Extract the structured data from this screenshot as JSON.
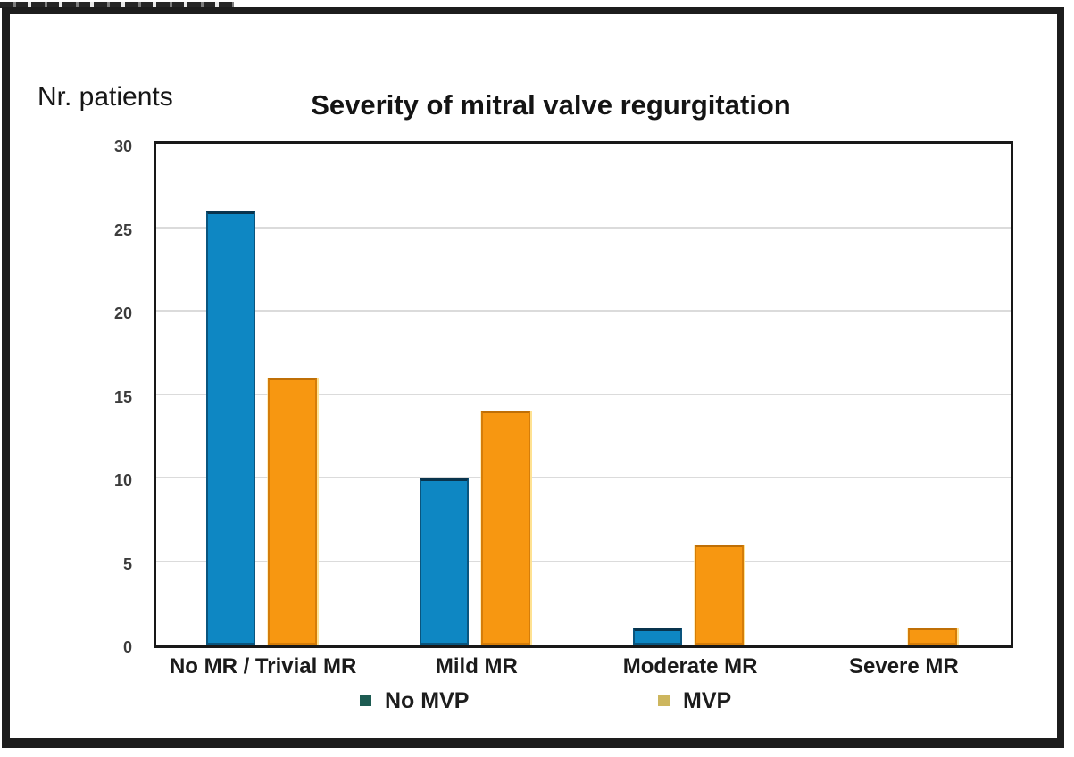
{
  "chart_data": {
    "type": "bar",
    "title": "Severity of mitral valve regurgitation",
    "ylabel": "Nr. patients",
    "xlabel": "",
    "categories": [
      "No MR / Trivial MR",
      "Mild MR",
      "Moderate MR",
      "Severe MR"
    ],
    "series": [
      {
        "name": "No MVP",
        "color": "#0e87c3",
        "marker_color": "#1d5b52",
        "values": [
          26,
          10,
          1,
          0
        ]
      },
      {
        "name": "MVP",
        "color": "#f79711",
        "marker_color": "#cdb65e",
        "values": [
          16,
          14,
          6,
          1
        ]
      }
    ],
    "ylim": [
      0,
      30
    ],
    "yticks": [
      0,
      5,
      10,
      15,
      20,
      25,
      30
    ],
    "grid": "horizontal-light",
    "legend_position": "bottom",
    "frame_color": "#1d1d1d"
  }
}
